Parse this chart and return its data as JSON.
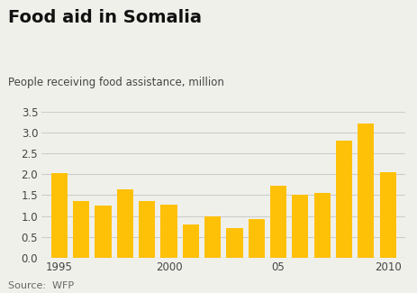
{
  "title": "Food aid in Somalia",
  "ylabel": "People receiving food assistance, million",
  "source": "Source:  WFP",
  "bar_color": "#FFC107",
  "years": [
    1995,
    1996,
    1997,
    1998,
    1999,
    2000,
    2001,
    2002,
    2003,
    2004,
    2005,
    2006,
    2007,
    2008,
    2009,
    2010
  ],
  "values": [
    2.02,
    1.35,
    1.25,
    1.63,
    1.35,
    1.28,
    0.8,
    1.0,
    0.72,
    0.93,
    1.73,
    1.5,
    1.55,
    2.8,
    3.21,
    2.05
  ],
  "ylim": [
    0,
    3.5
  ],
  "yticks": [
    0.0,
    0.5,
    1.0,
    1.5,
    2.0,
    2.5,
    3.0,
    3.5
  ],
  "xtick_positions": [
    1995,
    2000,
    2005,
    2010
  ],
  "xtick_labels": [
    "1995",
    "2000",
    "05",
    "2010"
  ],
  "background_color": "#f0f0eb",
  "grid_color": "#cccccc",
  "title_fontsize": 14,
  "label_fontsize": 8.5,
  "source_fontsize": 8
}
